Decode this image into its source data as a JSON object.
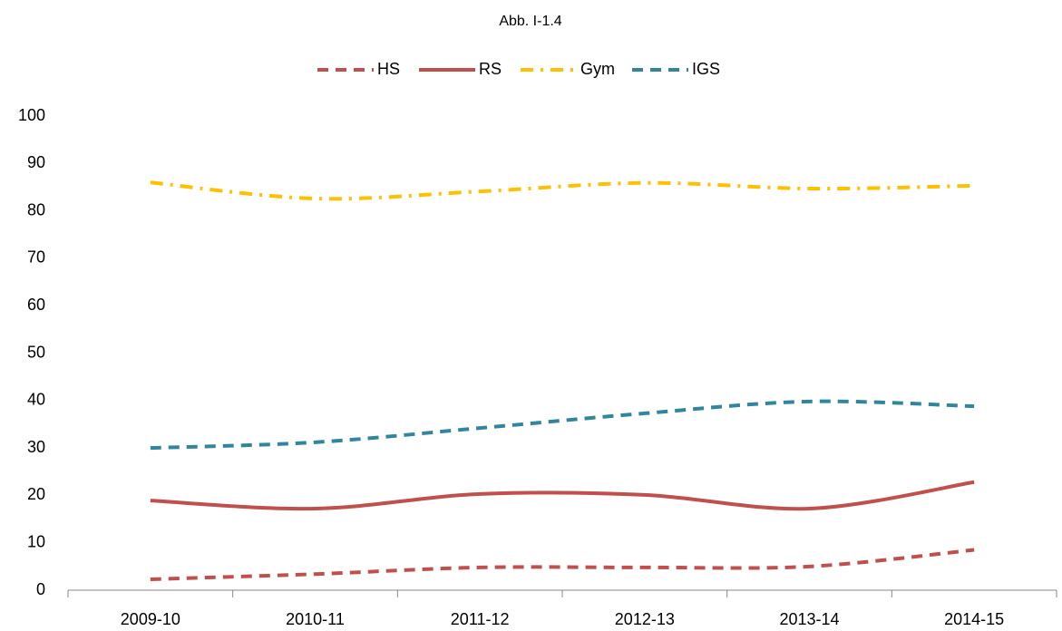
{
  "chart_data": {
    "type": "line",
    "title": "Abb. I-1.4",
    "categories": [
      "2009-10",
      "2010-11",
      "2011-12",
      "2012-13",
      "2013-14",
      "2014-15"
    ],
    "series": [
      {
        "name": "HS",
        "color": "#c0504d",
        "dash": "dash",
        "values": [
          2.3,
          3.4,
          4.8,
          4.8,
          5.0,
          8.5
        ]
      },
      {
        "name": "RS",
        "color": "#c0504d",
        "dash": "solid",
        "values": [
          18.9,
          17.2,
          20.3,
          20.1,
          17.2,
          22.8
        ]
      },
      {
        "name": "Gym",
        "color": "#ffc000",
        "dash": "dashdot",
        "values": [
          86.0,
          82.6,
          84.1,
          85.9,
          84.7,
          85.3
        ]
      },
      {
        "name": "IGS",
        "color": "#31859c",
        "dash": "dash",
        "values": [
          30.0,
          31.2,
          34.2,
          37.3,
          39.8,
          38.8
        ]
      }
    ],
    "ylim": [
      0,
      100
    ],
    "yticks": [
      0,
      10,
      20,
      30,
      40,
      50,
      60,
      70,
      80,
      90,
      100
    ],
    "grid": false,
    "smooth": true,
    "legend": "top"
  }
}
